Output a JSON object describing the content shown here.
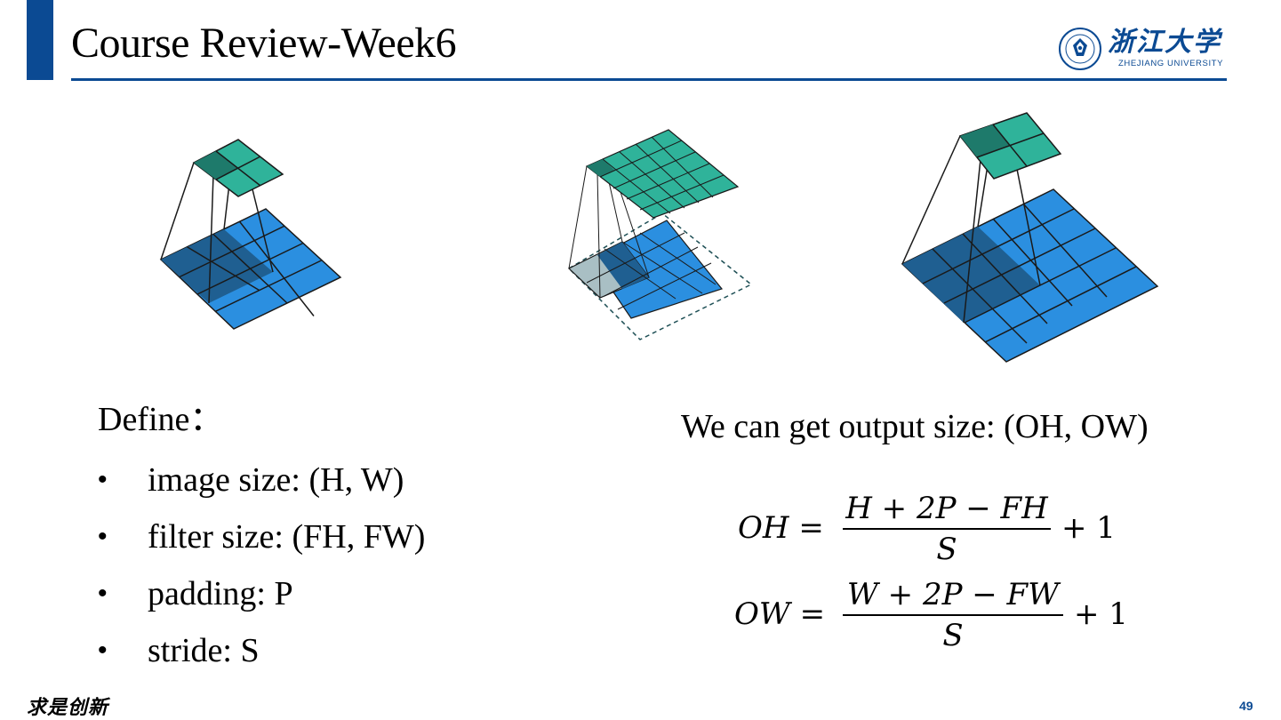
{
  "header": {
    "title": "Course Review-Week6",
    "logo_cn": "浙江大学",
    "logo_en": "ZHEJIANG UNIVERSITY"
  },
  "colors": {
    "brand_blue": "#0b4a93",
    "input_cell": "#2b8fe0",
    "input_cell_dark": "#1f5f91",
    "output_cell": "#2fb39a",
    "output_cell_dark": "#1e7a6b",
    "padding_cell": "#a9bfc4"
  },
  "define": {
    "heading": "Define：",
    "items": [
      "image size: (H, W)",
      "filter size: (FH, FW)",
      "padding: P",
      "stride: S"
    ],
    "bullet": "•"
  },
  "output": {
    "line": "We can get output size: (OH, OW)",
    "oh": {
      "lhs": "OH =",
      "numerator": "H + 2P − FH",
      "denominator": "S",
      "rhs": "+ 1"
    },
    "ow": {
      "lhs": "OW =",
      "numerator": "W + 2P − FW",
      "denominator": "S",
      "rhs": "+ 1"
    }
  },
  "footer": {
    "slogan": "求是创新",
    "page_number": "49"
  }
}
